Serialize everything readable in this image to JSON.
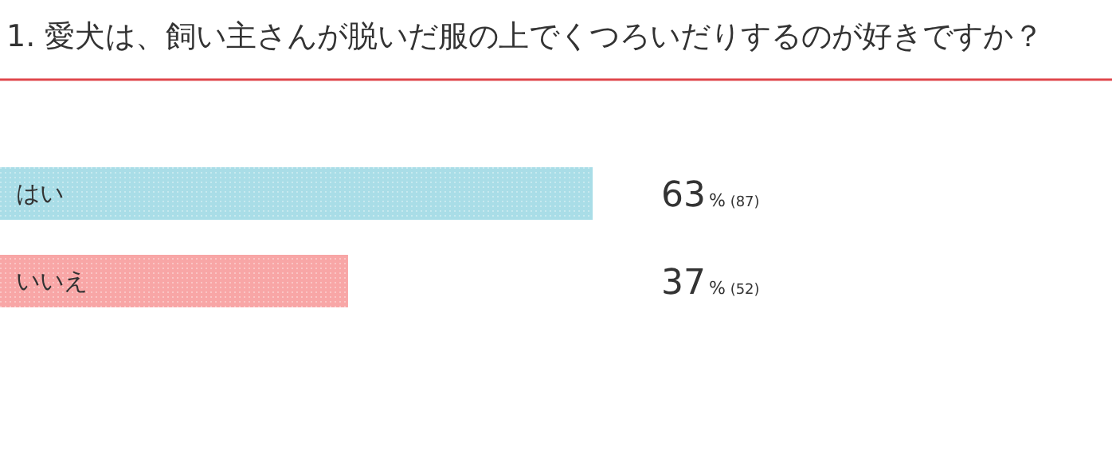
{
  "chart_data": {
    "type": "bar",
    "orientation": "horizontal",
    "title": "1. 愛犬は、飼い主さんが脱いだ服の上でくつろいだりするのが好きですか？",
    "categories": [
      "はい",
      "いいえ"
    ],
    "values": [
      63,
      37
    ],
    "colors": [
      "#a9dde7",
      "#f8a6a6"
    ],
    "value_labels": [
      "63% (87)",
      "37% (52)"
    ]
  }
}
